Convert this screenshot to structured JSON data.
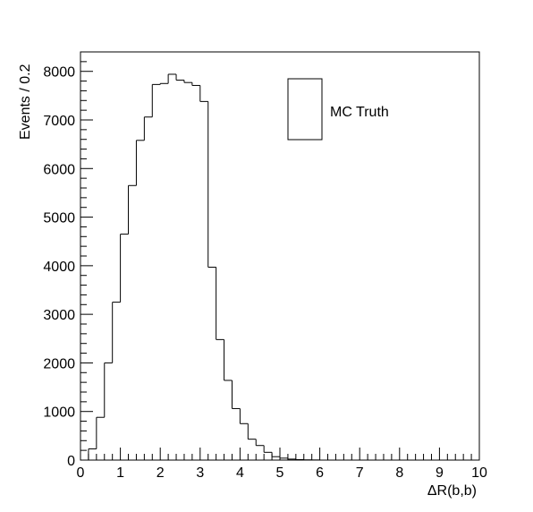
{
  "chart_data": {
    "type": "histogram",
    "xlabel": "ΔR(b,b)",
    "ylabel": "Events / 0.2",
    "xlim": [
      0,
      10
    ],
    "ylim": [
      0,
      8400
    ],
    "grid": false,
    "legend_position": "top-right",
    "x_ticks": [
      "0",
      "1",
      "2",
      "3",
      "4",
      "5",
      "6",
      "7",
      "8",
      "9",
      "10"
    ],
    "y_ticks": [
      "0",
      "1000",
      "2000",
      "3000",
      "4000",
      "5000",
      "6000",
      "7000",
      "8000"
    ],
    "bin_width": 0.2,
    "series": [
      {
        "name": "MC Truth",
        "bin_edges_start": 0,
        "values": [
          0,
          230,
          880,
          2000,
          3250,
          4650,
          5650,
          6580,
          7060,
          7730,
          7750,
          7940,
          7820,
          7770,
          7710,
          7380,
          3970,
          2480,
          1640,
          1060,
          750,
          430,
          300,
          160,
          70,
          40,
          20,
          10,
          5,
          3,
          0,
          0,
          0,
          0,
          0,
          0,
          0,
          0,
          0,
          0,
          0,
          0,
          0,
          0,
          0,
          0,
          0,
          0,
          0,
          0
        ]
      }
    ]
  }
}
